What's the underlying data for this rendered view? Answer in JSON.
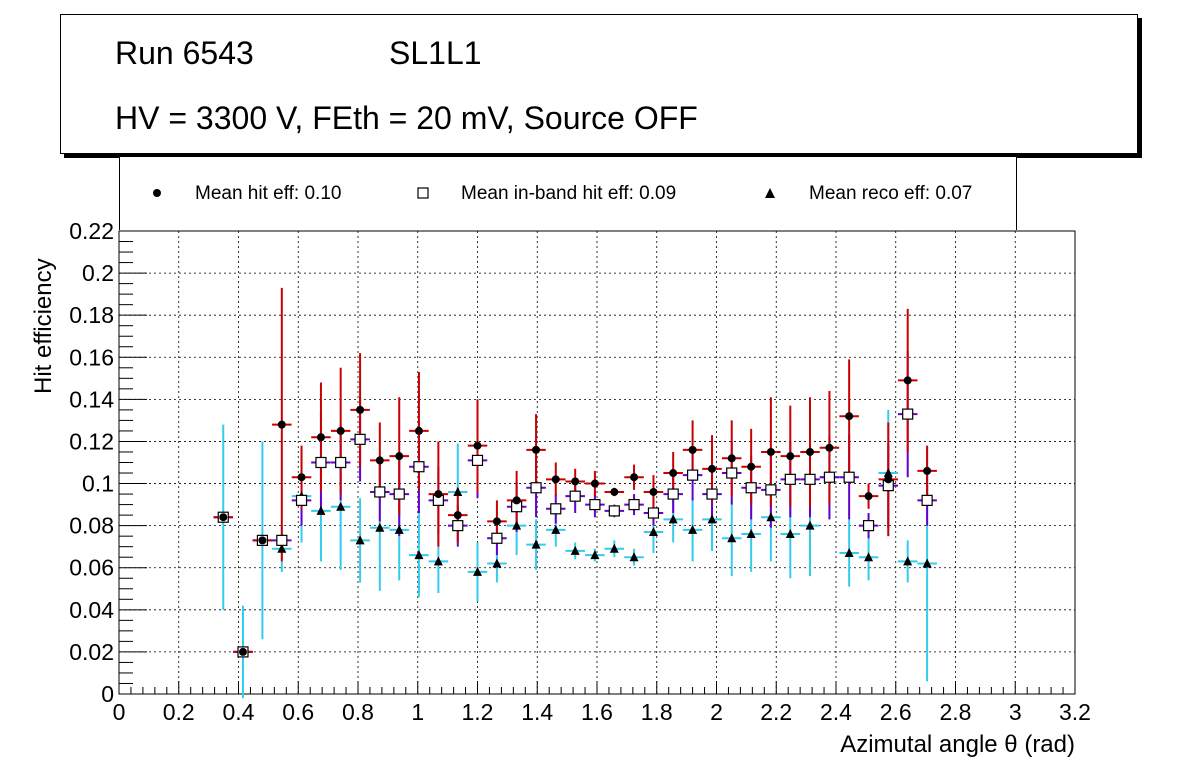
{
  "header": {
    "run": "Run 6543",
    "layer": "SL1L1",
    "conditions": "HV = 3300 V, FEth = 20 mV, Source OFF"
  },
  "legend": {
    "hit": "Mean hit  eff: 0.10",
    "inband": "Mean in-band hit eff: 0.09",
    "reco": "Mean reco eff: 0.07"
  },
  "colors": {
    "hit_err": "#cc0000",
    "inband_err": "#6600cc",
    "reco_err": "#33ccee",
    "marker": "#000000",
    "inband_fill": "#ffffff"
  },
  "chart_data": {
    "type": "scatter",
    "xlabel": "Azimutal angle θ (rad)",
    "ylabel": "Hit efficiency",
    "xlim": [
      0,
      3.2
    ],
    "ylim": [
      0,
      0.22
    ],
    "grid": true,
    "x_ticks": [
      "0",
      "0.2",
      "0.4",
      "0.6",
      "0.8",
      "1",
      "1.2",
      "1.4",
      "1.6",
      "1.8",
      "2",
      "2.2",
      "2.4",
      "2.6",
      "2.8",
      "3",
      "3.2"
    ],
    "y_ticks": [
      "0",
      "0.02",
      "0.04",
      "0.06",
      "0.08",
      "0.1",
      "0.12",
      "0.14",
      "0.16",
      "0.18",
      "0.2",
      "0.22"
    ],
    "bin_half_width": 0.0327,
    "x": [
      0.349,
      0.415,
      0.48,
      0.545,
      0.611,
      0.676,
      0.742,
      0.807,
      0.873,
      0.938,
      1.004,
      1.069,
      1.134,
      1.2,
      1.265,
      1.331,
      1.396,
      1.462,
      1.527,
      1.593,
      1.658,
      1.724,
      1.789,
      1.855,
      1.92,
      1.985,
      2.051,
      2.116,
      2.182,
      2.247,
      2.313,
      2.378,
      2.444,
      2.509,
      2.575,
      2.64,
      2.705
    ],
    "series": [
      {
        "name": "Mean hit eff",
        "marker": "circle",
        "values": [
          0.084,
          0.02,
          0.073,
          0.128,
          0.103,
          0.122,
          0.125,
          0.135,
          0.111,
          0.113,
          0.125,
          0.095,
          0.085,
          0.118,
          0.082,
          0.092,
          0.116,
          0.102,
          0.101,
          0.1,
          0.096,
          0.103,
          0.096,
          0.105,
          0.116,
          0.107,
          0.112,
          0.108,
          0.115,
          0.113,
          0.115,
          0.117,
          0.132,
          0.094,
          0.102,
          0.149,
          0.106
        ],
        "err": [
          0.0,
          0.0,
          0.0,
          0.065,
          0.015,
          0.026,
          0.03,
          0.027,
          0.018,
          0.028,
          0.028,
          0.025,
          0.013,
          0.022,
          0.01,
          0.014,
          0.017,
          0.008,
          0.006,
          0.006,
          0.002,
          0.006,
          0.008,
          0.01,
          0.014,
          0.016,
          0.018,
          0.018,
          0.026,
          0.024,
          0.026,
          0.027,
          0.027,
          0.006,
          0.027,
          0.034,
          0.012
        ]
      },
      {
        "name": "Mean in-band hit eff",
        "marker": "open-square",
        "values": [
          0.084,
          0.02,
          0.073,
          0.073,
          0.092,
          0.11,
          0.11,
          0.121,
          0.096,
          0.095,
          0.108,
          0.092,
          0.08,
          0.111,
          0.074,
          0.089,
          0.098,
          0.088,
          0.094,
          0.09,
          0.087,
          0.09,
          0.086,
          0.095,
          0.104,
          0.095,
          0.105,
          0.098,
          0.097,
          0.102,
          0.102,
          0.103,
          0.103,
          0.08,
          0.099,
          0.133,
          0.092
        ],
        "err": [
          0.0,
          0.0,
          0.0,
          0.0,
          0.012,
          0.024,
          0.018,
          0.02,
          0.014,
          0.02,
          0.022,
          0.016,
          0.01,
          0.018,
          0.008,
          0.012,
          0.014,
          0.007,
          0.008,
          0.006,
          0.003,
          0.005,
          0.006,
          0.009,
          0.012,
          0.012,
          0.015,
          0.015,
          0.018,
          0.018,
          0.018,
          0.02,
          0.02,
          0.006,
          0.02,
          0.03,
          0.012
        ]
      },
      {
        "name": "Mean reco eff",
        "marker": "triangle",
        "values": [
          0.084,
          0.02,
          0.073,
          0.069,
          0.094,
          0.087,
          0.089,
          0.073,
          0.079,
          0.078,
          0.066,
          0.063,
          0.096,
          0.058,
          0.062,
          0.08,
          0.071,
          0.078,
          0.068,
          0.066,
          0.069,
          0.065,
          0.077,
          0.083,
          0.078,
          0.083,
          0.074,
          0.076,
          0.084,
          0.076,
          0.08,
          0.103,
          0.067,
          0.065,
          0.105,
          0.063,
          0.062
        ],
        "err": [
          0.044,
          0.022,
          0.047,
          0.011,
          0.022,
          0.024,
          0.03,
          0.02,
          0.03,
          0.024,
          0.02,
          0.015,
          0.023,
          0.014,
          0.009,
          0.014,
          0.012,
          0.008,
          0.004,
          0.003,
          0.004,
          0.004,
          0.01,
          0.011,
          0.015,
          0.015,
          0.018,
          0.018,
          0.021,
          0.021,
          0.024,
          0.02,
          0.016,
          0.011,
          0.03,
          0.01,
          0.056
        ]
      }
    ]
  }
}
